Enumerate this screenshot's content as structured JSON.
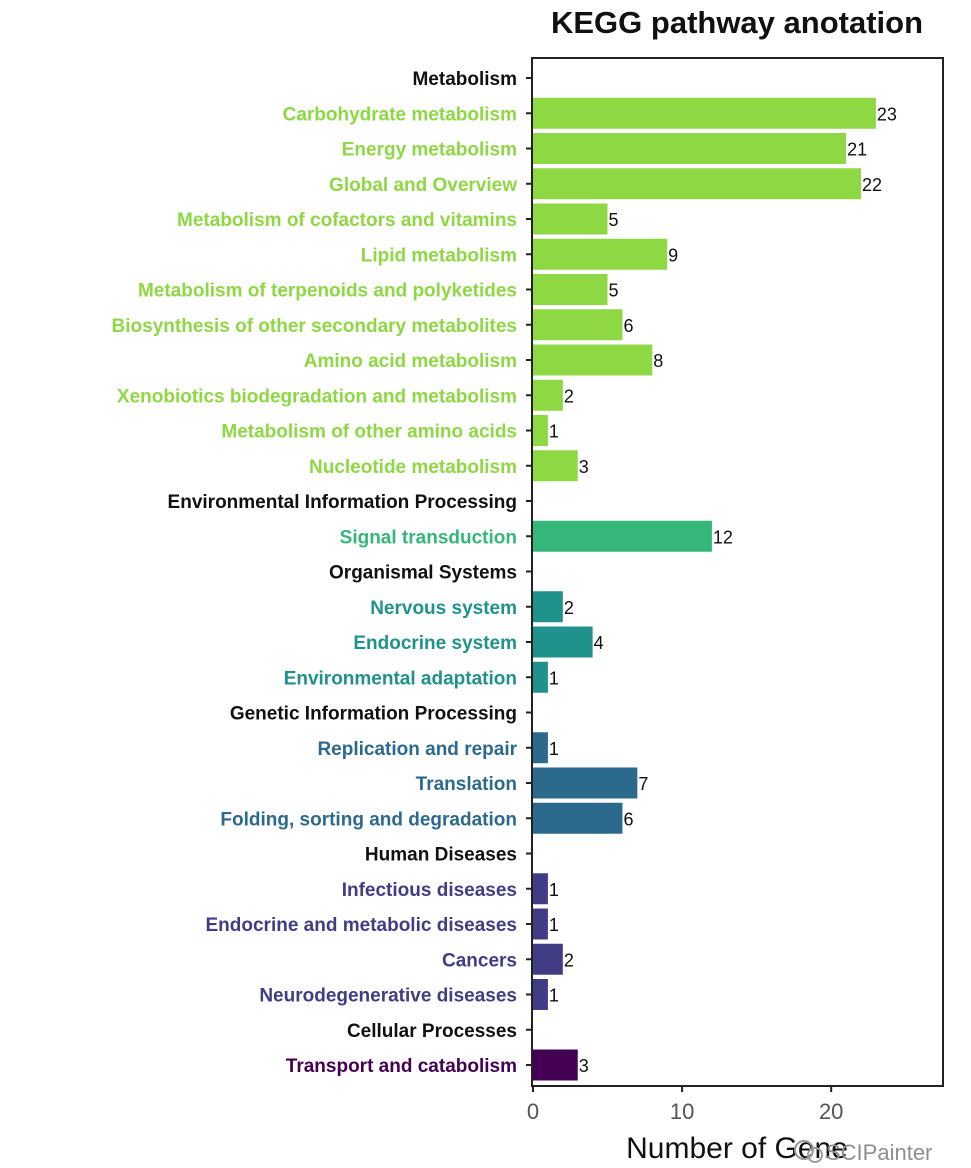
{
  "chart_data": {
    "type": "bar",
    "orientation": "horizontal",
    "title": "KEGG pathway anotation",
    "xlabel": "Number of Gene",
    "ylabel": "",
    "xlim": [
      0,
      27.5
    ],
    "xticks": [
      0,
      10,
      20
    ],
    "grid": false,
    "categories": [
      {
        "label": "Metabolism",
        "value": null,
        "group": "header",
        "color": "#111111"
      },
      {
        "label": "Carbohydrate metabolism",
        "value": 23,
        "group": "Metabolism",
        "color": "#8ed843"
      },
      {
        "label": "Energy metabolism",
        "value": 21,
        "group": "Metabolism",
        "color": "#8ed843"
      },
      {
        "label": "Global and Overview",
        "value": 22,
        "group": "Metabolism",
        "color": "#8ed843"
      },
      {
        "label": "Metabolism of cofactors and vitamins",
        "value": 5,
        "group": "Metabolism",
        "color": "#8ed843"
      },
      {
        "label": "Lipid metabolism",
        "value": 9,
        "group": "Metabolism",
        "color": "#8ed843"
      },
      {
        "label": "Metabolism of terpenoids and polyketides",
        "value": 5,
        "group": "Metabolism",
        "color": "#8ed843"
      },
      {
        "label": "Biosynthesis of other secondary metabolites",
        "value": 6,
        "group": "Metabolism",
        "color": "#8ed843"
      },
      {
        "label": "Amino acid metabolism",
        "value": 8,
        "group": "Metabolism",
        "color": "#8ed843"
      },
      {
        "label": "Xenobiotics biodegradation and metabolism",
        "value": 2,
        "group": "Metabolism",
        "color": "#8ed843"
      },
      {
        "label": "Metabolism of other amino acids",
        "value": 1,
        "group": "Metabolism",
        "color": "#8ed843"
      },
      {
        "label": "Nucleotide metabolism",
        "value": 3,
        "group": "Metabolism",
        "color": "#8ed843"
      },
      {
        "label": "Environmental Information Processing",
        "value": null,
        "group": "header",
        "color": "#111111"
      },
      {
        "label": "Signal transduction",
        "value": 12,
        "group": "Environmental Information Processing",
        "color": "#35b779"
      },
      {
        "label": "Organismal Systems",
        "value": null,
        "group": "header",
        "color": "#111111"
      },
      {
        "label": "Nervous system",
        "value": 2,
        "group": "Organismal Systems",
        "color": "#1f938b"
      },
      {
        "label": "Endocrine system",
        "value": 4,
        "group": "Organismal Systems",
        "color": "#1f938b"
      },
      {
        "label": "Environmental adaptation",
        "value": 1,
        "group": "Organismal Systems",
        "color": "#1f938b"
      },
      {
        "label": "Genetic Information Processing",
        "value": null,
        "group": "header",
        "color": "#111111"
      },
      {
        "label": "Replication and repair",
        "value": 1,
        "group": "Genetic Information Processing",
        "color": "#2c6a8d"
      },
      {
        "label": "Translation",
        "value": 7,
        "group": "Genetic Information Processing",
        "color": "#2c6a8d"
      },
      {
        "label": "Folding, sorting and degradation",
        "value": 6,
        "group": "Genetic Information Processing",
        "color": "#2c6a8d"
      },
      {
        "label": "Human Diseases",
        "value": null,
        "group": "header",
        "color": "#111111"
      },
      {
        "label": "Infectious diseases",
        "value": 1,
        "group": "Human Diseases",
        "color": "#413d84"
      },
      {
        "label": "Endocrine and metabolic diseases",
        "value": 1,
        "group": "Human Diseases",
        "color": "#413d84"
      },
      {
        "label": "Cancers",
        "value": 2,
        "group": "Human Diseases",
        "color": "#413d84"
      },
      {
        "label": "Neurodegenerative diseases",
        "value": 1,
        "group": "Human Diseases",
        "color": "#413d84"
      },
      {
        "label": "Cellular Processes",
        "value": null,
        "group": "header",
        "color": "#111111"
      },
      {
        "label": "Transport and catabolism",
        "value": 3,
        "group": "Cellular Processes",
        "color": "#440154"
      }
    ]
  },
  "watermark": "SCIPainter"
}
